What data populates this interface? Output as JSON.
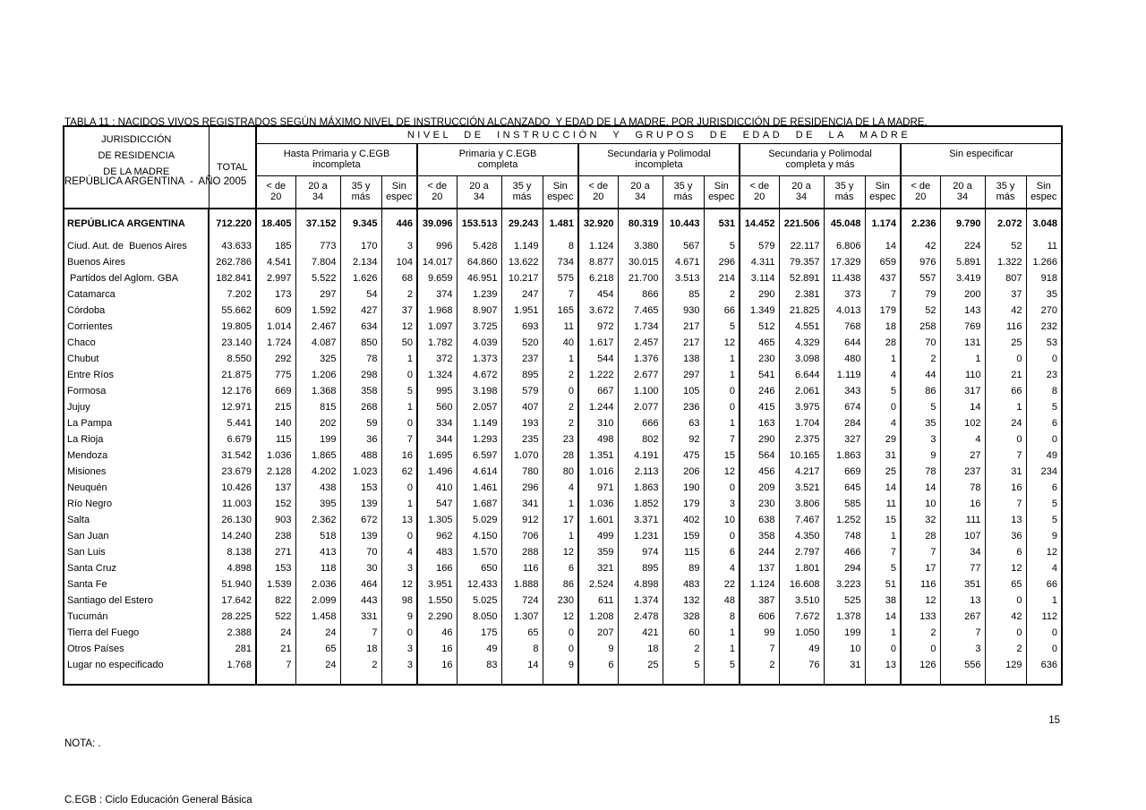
{
  "page": {
    "title_line1": "TABLA 11 : NACIDOS VIVOS REGISTRADOS SEGÚN MÁXIMO NIVEL DE INSTRUCCIÓN ALCANZADO  Y EDAD DE LA MADRE, POR JURISDICCIÓN DE RESIDENCIA DE LA MADRE.",
    "title_line2": "REPÚBLICA ARGENTINA  -  AÑO 2005",
    "note1": "NOTA: .",
    "note2": "C.EGB : Ciclo Educación General Básica",
    "page_number": "15"
  },
  "table": {
    "stub_header_lines": [
      "JURISDICCIÓN",
      "DE RESIDENCIA",
      "DE LA MADRE"
    ],
    "total_header": "TOTAL",
    "span_header": "NIVEL DE INSTRUCCIÓN Y GRUPOS DE EDAD DE LA MADRE",
    "groups": [
      {
        "line1": "Hasta Primaria y C.EGB",
        "line2": "incompleta"
      },
      {
        "line1": "Primaria y C.EGB",
        "line2": "completa"
      },
      {
        "line1": "Secundaria y Polimodal",
        "line2": "incompleta"
      },
      {
        "line1": "Secundaria y Polimodal",
        "line2": "completa y más"
      },
      {
        "line1": "Sin especificar",
        "line2": ""
      }
    ],
    "subcols": [
      {
        "l1": "< de",
        "l2": "20"
      },
      {
        "l1": "20 a",
        "l2": "34"
      },
      {
        "l1": "35 y",
        "l2": "más"
      },
      {
        "l1": "Sin",
        "l2": "espec"
      }
    ],
    "rows": [
      {
        "label": "REPÚBLICA ARGENTINA",
        "bold": true,
        "values": [
          "712.220",
          "18.405",
          "37.152",
          "9.345",
          "446",
          "39.096",
          "153.513",
          "29.243",
          "1.481",
          "32.920",
          "80.319",
          "10.443",
          "531",
          "14.452",
          "221.506",
          "45.048",
          "1.174",
          "2.236",
          "9.790",
          "2.072",
          "3.048"
        ]
      },
      {
        "label": "Ciud. Aut. de  Buenos Aires",
        "bold": false,
        "values": [
          "43.633",
          "185",
          "773",
          "170",
          "3",
          "996",
          "5.428",
          "1.149",
          "8",
          "1.124",
          "3.380",
          "567",
          "5",
          "579",
          "22.117",
          "6.806",
          "14",
          "42",
          "224",
          "52",
          "11"
        ]
      },
      {
        "label": "Buenos Aires",
        "bold": false,
        "values": [
          "262.786",
          "4.541",
          "7.804",
          "2.134",
          "104",
          "14.017",
          "64.860",
          "13.622",
          "734",
          "8.877",
          "30.015",
          "4.671",
          "296",
          "4.311",
          "79.357",
          "17.329",
          "659",
          "976",
          "5.891",
          "1.322",
          "1.266"
        ]
      },
      {
        "label": " Partidos del Aglom. GBA",
        "bold": false,
        "values": [
          "182.841",
          "2.997",
          "5.522",
          "1.626",
          "68",
          "9.659",
          "46.951",
          "10.217",
          "575",
          "6.218",
          "21.700",
          "3.513",
          "214",
          "3.114",
          "52.891",
          "11.438",
          "437",
          "557",
          "3.419",
          "807",
          "918"
        ]
      },
      {
        "label": "Catamarca",
        "bold": false,
        "values": [
          "7.202",
          "173",
          "297",
          "54",
          "2",
          "374",
          "1.239",
          "247",
          "7",
          "454",
          "866",
          "85",
          "2",
          "290",
          "2.381",
          "373",
          "7",
          "79",
          "200",
          "37",
          "35"
        ]
      },
      {
        "label": "Córdoba",
        "bold": false,
        "values": [
          "55.662",
          "609",
          "1.592",
          "427",
          "37",
          "1.968",
          "8.907",
          "1.951",
          "165",
          "3.672",
          "7.465",
          "930",
          "66",
          "1.349",
          "21.825",
          "4.013",
          "179",
          "52",
          "143",
          "42",
          "270"
        ]
      },
      {
        "label": "Corrientes",
        "bold": false,
        "values": [
          "19.805",
          "1.014",
          "2.467",
          "634",
          "12",
          "1.097",
          "3.725",
          "693",
          "11",
          "972",
          "1.734",
          "217",
          "5",
          "512",
          "4.551",
          "768",
          "18",
          "258",
          "769",
          "116",
          "232"
        ]
      },
      {
        "label": "Chaco",
        "bold": false,
        "values": [
          "23.140",
          "1.724",
          "4.087",
          "850",
          "50",
          "1.782",
          "4.039",
          "520",
          "40",
          "1.617",
          "2.457",
          "217",
          "12",
          "465",
          "4.329",
          "644",
          "28",
          "70",
          "131",
          "25",
          "53"
        ]
      },
      {
        "label": "Chubut",
        "bold": false,
        "values": [
          "8.550",
          "292",
          "325",
          "78",
          "1",
          "372",
          "1.373",
          "237",
          "1",
          "544",
          "1.376",
          "138",
          "1",
          "230",
          "3.098",
          "480",
          "1",
          "2",
          "1",
          "0",
          "0"
        ]
      },
      {
        "label": "Entre Ríos",
        "bold": false,
        "values": [
          "21.875",
          "775",
          "1.206",
          "298",
          "0",
          "1.324",
          "4.672",
          "895",
          "2",
          "1.222",
          "2.677",
          "297",
          "1",
          "541",
          "6.644",
          "1.119",
          "4",
          "44",
          "110",
          "21",
          "23"
        ]
      },
      {
        "label": "Formosa",
        "bold": false,
        "values": [
          "12.176",
          "669",
          "1.368",
          "358",
          "5",
          "995",
          "3.198",
          "579",
          "0",
          "667",
          "1.100",
          "105",
          "0",
          "246",
          "2.061",
          "343",
          "5",
          "86",
          "317",
          "66",
          "8"
        ]
      },
      {
        "label": "Jujuy",
        "bold": false,
        "values": [
          "12.971",
          "215",
          "815",
          "268",
          "1",
          "560",
          "2.057",
          "407",
          "2",
          "1.244",
          "2.077",
          "236",
          "0",
          "415",
          "3.975",
          "674",
          "0",
          "5",
          "14",
          "1",
          "5"
        ]
      },
      {
        "label": "La Pampa",
        "bold": false,
        "values": [
          "5.441",
          "140",
          "202",
          "59",
          "0",
          "334",
          "1.149",
          "193",
          "2",
          "310",
          "666",
          "63",
          "1",
          "163",
          "1.704",
          "284",
          "4",
          "35",
          "102",
          "24",
          "6"
        ]
      },
      {
        "label": "La Rioja",
        "bold": false,
        "values": [
          "6.679",
          "115",
          "199",
          "36",
          "7",
          "344",
          "1.293",
          "235",
          "23",
          "498",
          "802",
          "92",
          "7",
          "290",
          "2.375",
          "327",
          "29",
          "3",
          "4",
          "0",
          "0"
        ]
      },
      {
        "label": "Mendoza",
        "bold": false,
        "values": [
          "31.542",
          "1.036",
          "1.865",
          "488",
          "16",
          "1.695",
          "6.597",
          "1.070",
          "28",
          "1.351",
          "4.191",
          "475",
          "15",
          "564",
          "10.165",
          "1.863",
          "31",
          "9",
          "27",
          "7",
          "49"
        ]
      },
      {
        "label": "Misiones",
        "bold": false,
        "values": [
          "23.679",
          "2.128",
          "4.202",
          "1.023",
          "62",
          "1.496",
          "4.614",
          "780",
          "80",
          "1.016",
          "2.113",
          "206",
          "12",
          "456",
          "4.217",
          "669",
          "25",
          "78",
          "237",
          "31",
          "234"
        ]
      },
      {
        "label": "Neuquén",
        "bold": false,
        "values": [
          "10.426",
          "137",
          "438",
          "153",
          "0",
          "410",
          "1.461",
          "296",
          "4",
          "971",
          "1.863",
          "190",
          "0",
          "209",
          "3.521",
          "645",
          "14",
          "14",
          "78",
          "16",
          "6"
        ]
      },
      {
        "label": "Río Negro",
        "bold": false,
        "values": [
          "11.003",
          "152",
          "395",
          "139",
          "1",
          "547",
          "1.687",
          "341",
          "1",
          "1.036",
          "1.852",
          "179",
          "3",
          "230",
          "3.806",
          "585",
          "11",
          "10",
          "16",
          "7",
          "5"
        ]
      },
      {
        "label": "Salta",
        "bold": false,
        "values": [
          "26.130",
          "903",
          "2.362",
          "672",
          "13",
          "1.305",
          "5.029",
          "912",
          "17",
          "1.601",
          "3.371",
          "402",
          "10",
          "638",
          "7.467",
          "1.252",
          "15",
          "32",
          "111",
          "13",
          "5"
        ]
      },
      {
        "label": "San Juan",
        "bold": false,
        "values": [
          "14.240",
          "238",
          "518",
          "139",
          "0",
          "962",
          "4.150",
          "706",
          "1",
          "499",
          "1.231",
          "159",
          "0",
          "358",
          "4.350",
          "748",
          "1",
          "28",
          "107",
          "36",
          "9"
        ]
      },
      {
        "label": "San Luis",
        "bold": false,
        "values": [
          "8.138",
          "271",
          "413",
          "70",
          "4",
          "483",
          "1.570",
          "288",
          "12",
          "359",
          "974",
          "115",
          "6",
          "244",
          "2.797",
          "466",
          "7",
          "7",
          "34",
          "6",
          "12"
        ]
      },
      {
        "label": "Santa Cruz",
        "bold": false,
        "values": [
          "4.898",
          "153",
          "118",
          "30",
          "3",
          "166",
          "650",
          "116",
          "6",
          "321",
          "895",
          "89",
          "4",
          "137",
          "1.801",
          "294",
          "5",
          "17",
          "77",
          "12",
          "4"
        ]
      },
      {
        "label": "Santa Fe",
        "bold": false,
        "values": [
          "51.940",
          "1.539",
          "2.036",
          "464",
          "12",
          "3.951",
          "12.433",
          "1.888",
          "86",
          "2.524",
          "4.898",
          "483",
          "22",
          "1.124",
          "16.608",
          "3.223",
          "51",
          "116",
          "351",
          "65",
          "66"
        ]
      },
      {
        "label": "Santiago del Estero",
        "bold": false,
        "values": [
          "17.642",
          "822",
          "2.099",
          "443",
          "98",
          "1.550",
          "5.025",
          "724",
          "230",
          "611",
          "1.374",
          "132",
          "48",
          "387",
          "3.510",
          "525",
          "38",
          "12",
          "13",
          "0",
          "1"
        ]
      },
      {
        "label": "Tucumán",
        "bold": false,
        "values": [
          "28.225",
          "522",
          "1.458",
          "331",
          "9",
          "2.290",
          "8.050",
          "1.307",
          "12",
          "1.208",
          "2.478",
          "328",
          "8",
          "606",
          "7.672",
          "1.378",
          "14",
          "133",
          "267",
          "42",
          "112"
        ]
      },
      {
        "label": "Tierra del Fuego",
        "bold": false,
        "values": [
          "2.388",
          "24",
          "24",
          "7",
          "0",
          "46",
          "175",
          "65",
          "0",
          "207",
          "421",
          "60",
          "1",
          "99",
          "1.050",
          "199",
          "1",
          "2",
          "7",
          "0",
          "0"
        ]
      },
      {
        "label": "Otros Países",
        "bold": false,
        "values": [
          "281",
          "21",
          "65",
          "18",
          "3",
          "16",
          "49",
          "8",
          "0",
          "9",
          "18",
          "2",
          "1",
          "7",
          "49",
          "10",
          "0",
          "0",
          "3",
          "2",
          "0"
        ]
      },
      {
        "label": "Lugar no especificado",
        "bold": false,
        "values": [
          "1.768",
          "7",
          "24",
          "2",
          "3",
          "16",
          "83",
          "14",
          "9",
          "6",
          "25",
          "5",
          "5",
          "2",
          "76",
          "31",
          "13",
          "126",
          "556",
          "129",
          "636"
        ]
      }
    ]
  }
}
